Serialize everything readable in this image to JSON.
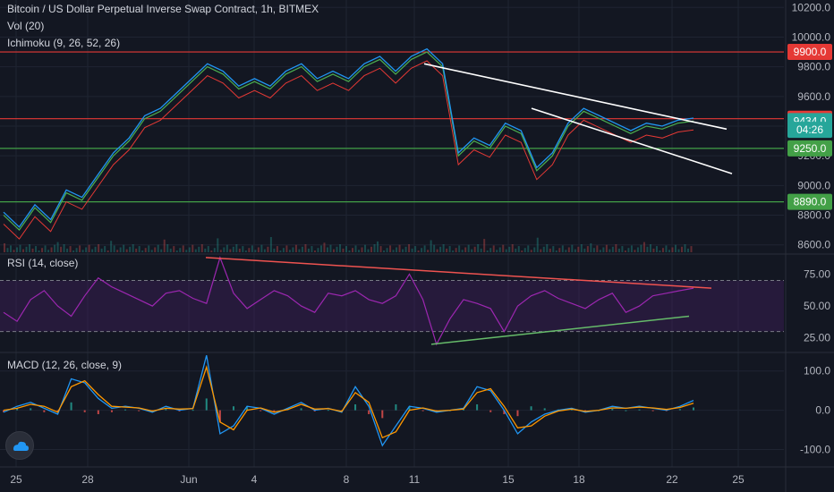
{
  "header": {
    "title": "Bitcoin / US Dollar Perpetual Inverse Swap Contract, 1h, BITMEX",
    "vol_label": "Vol (20)",
    "ichimoku_label": "Ichimoku (9, 26, 52, 26)"
  },
  "panes": {
    "rsi_label": "RSI (14, close)",
    "macd_label": "MACD (12, 26, close, 9)"
  },
  "colors": {
    "background": "#131722",
    "grid": "#1f2432",
    "axis_text": "#b2b5be",
    "price_up": "#26a69a",
    "price_down": "#ef5350",
    "red_level": "#e53935",
    "green_level": "#43a047",
    "trendline": "#ffffff",
    "rsi_line": "#9c27b0",
    "rsi_band": "#4a1f6b",
    "rsi_resistance": "#ef5350",
    "rsi_support": "#66bb6a",
    "macd_line": "#2196f3",
    "signal_line": "#ff9800"
  },
  "icons": {
    "logo": "tradingview-cloud-icon"
  },
  "chart_data": [
    {
      "type": "line",
      "name": "price",
      "title": "Bitcoin / US Dollar Perpetual Inverse Swap Contract, 1h, BITMEX",
      "x_labels": [
        "25",
        "28",
        "Jun",
        "4",
        "8",
        "11",
        "15",
        "18",
        "22",
        "25"
      ],
      "ylim": [
        8550,
        10250
      ],
      "y_ticks": [
        8600.0,
        8800.0,
        9000.0,
        9200.0,
        9400.0,
        9600.0,
        9800.0,
        10000.0,
        10200.0
      ],
      "grid": true,
      "series": [
        {
          "values": [
            8800,
            8700,
            8850,
            8750,
            8950,
            8900,
            9050,
            9200,
            9300,
            9450,
            9500,
            9600,
            9700,
            9800,
            9750,
            9650,
            9700,
            9650,
            9750,
            9800,
            9700,
            9750,
            9700,
            9800,
            9850,
            9750,
            9850,
            9900,
            9800,
            9200,
            9300,
            9250,
            9400,
            9350,
            9100,
            9200,
            9400,
            9500,
            9450,
            9400,
            9350,
            9400,
            9380,
            9420,
            9434
          ]
        }
      ],
      "price_labels": [
        {
          "label": "9900.0",
          "value": 9900,
          "color": "#e53935"
        },
        {
          "label": "9450.0",
          "value": 9450,
          "color": "#e53935"
        },
        {
          "label": "9434.0",
          "value": 9434,
          "color": "#26a69a"
        },
        {
          "label": "04:26",
          "value": 9375,
          "color": "#26a69a"
        },
        {
          "label": "9250.0",
          "value": 9250,
          "color": "#43a047"
        },
        {
          "label": "8890.0",
          "value": 8890,
          "color": "#43a047"
        }
      ],
      "horizontal_levels": [
        {
          "value": 9900,
          "color": "#e53935"
        },
        {
          "value": 9450,
          "color": "#e53935"
        },
        {
          "value": 9250,
          "color": "#43a047"
        },
        {
          "value": 8890,
          "color": "#43a047"
        }
      ]
    },
    {
      "type": "line",
      "name": "rsi",
      "title": "RSI (14, close)",
      "ylim": [
        15,
        90
      ],
      "y_ticks": [
        25.0,
        50.0,
        75.0
      ],
      "bands": [
        30,
        70
      ],
      "values": [
        45,
        38,
        55,
        62,
        50,
        42,
        58,
        72,
        65,
        60,
        55,
        50,
        60,
        62,
        56,
        52,
        88,
        60,
        48,
        55,
        62,
        58,
        50,
        45,
        60,
        58,
        62,
        55,
        52,
        58,
        75,
        55,
        20,
        40,
        55,
        52,
        48,
        30,
        50,
        58,
        62,
        56,
        52,
        48,
        55,
        60,
        45,
        50,
        58,
        60,
        62,
        64
      ]
    },
    {
      "type": "line",
      "name": "macd",
      "title": "MACD (12, 26, close, 9)",
      "ylim": [
        -140,
        145
      ],
      "y_ticks": [
        -100.0,
        0.0,
        100.0
      ],
      "series": [
        {
          "name": "MACD",
          "values": [
            -5,
            10,
            20,
            5,
            -10,
            80,
            70,
            30,
            5,
            10,
            5,
            -5,
            10,
            0,
            5,
            140,
            -60,
            -40,
            10,
            5,
            -10,
            5,
            20,
            0,
            5,
            -5,
            60,
            10,
            -90,
            -40,
            10,
            5,
            -5,
            0,
            5,
            60,
            50,
            0,
            -60,
            -30,
            -10,
            0,
            5,
            -5,
            0,
            10,
            5,
            10,
            5,
            0,
            10,
            25
          ]
        },
        {
          "name": "Signal",
          "values": [
            0,
            5,
            15,
            10,
            -5,
            60,
            75,
            40,
            10,
            8,
            6,
            -2,
            5,
            3,
            4,
            110,
            -30,
            -50,
            0,
            6,
            -5,
            2,
            15,
            3,
            4,
            -3,
            45,
            20,
            -70,
            -55,
            0,
            6,
            -2,
            0,
            3,
            45,
            55,
            10,
            -45,
            -40,
            -15,
            -2,
            3,
            -3,
            0,
            6,
            5,
            8,
            6,
            2,
            7,
            18
          ]
        }
      ]
    }
  ]
}
